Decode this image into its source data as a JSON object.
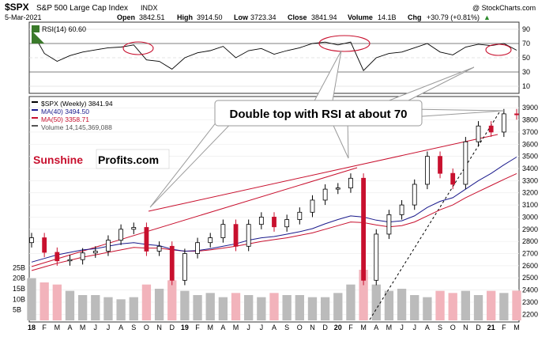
{
  "header": {
    "symbol": "$SPX",
    "name": "S&P 500 Large Cap Index",
    "exchange": "INDX",
    "date": "5-Mar-2021",
    "open_label": "Open",
    "open": "3842.51",
    "high_label": "High",
    "high": "3914.50",
    "low_label": "Low",
    "low": "3723.34",
    "close_label": "Close",
    "close": "3841.94",
    "volume_label": "Volume",
    "volume": "14.1B",
    "chg_label": "Chg",
    "chg": "+30.79 (+0.81%)",
    "chg_arrow": "▲",
    "watermark": "@ StockCharts.com"
  },
  "rsi_panel": {
    "label": "RSI(14) 60.60",
    "levels": [
      "90",
      "70",
      "50",
      "30",
      "10"
    ],
    "colors": {
      "line": "#000000",
      "overbought_fill": "#3a7a2a",
      "oversold_fill": "#b4162a",
      "highlight": "#c8102e"
    }
  },
  "price_panel": {
    "legend": [
      {
        "text": "$SPX (Weekly) 3841.94",
        "color": "#000000"
      },
      {
        "text": "MA(40) 3494.50",
        "color": "#1a1a8c"
      },
      {
        "text": "MA(50) 3358.71",
        "color": "#c8102e"
      },
      {
        "text": "Volume 14,145,369,088",
        "color": "#555555"
      }
    ],
    "price_ticks": [
      "3900",
      "3800",
      "3700",
      "3600",
      "3500",
      "3400",
      "3300",
      "3200",
      "3100",
      "3000",
      "2900",
      "2800",
      "2700",
      "2600",
      "2500",
      "2400",
      "2300",
      "2200"
    ],
    "volume_ticks": [
      "25B",
      "20B",
      "15B",
      "10B",
      "5B"
    ],
    "annotation": "Double top with RSI at about 70",
    "logo": {
      "part1": "Sunshine",
      "part2": "Profits.com"
    },
    "colors": {
      "up": "#000000",
      "down": "#c8102e",
      "ma40": "#1a1a8c",
      "ma50": "#c8102e",
      "trendline": "#c8102e",
      "volume": "#bbbbbb",
      "volume_up": "#f2b3bb"
    }
  },
  "x_axis": {
    "labels": [
      "18",
      "F",
      "M",
      "A",
      "M",
      "J",
      "J",
      "A",
      "S",
      "O",
      "N",
      "D",
      "19",
      "F",
      "M",
      "A",
      "M",
      "J",
      "J",
      "A",
      "S",
      "O",
      "N",
      "D",
      "20",
      "F",
      "M",
      "A",
      "M",
      "J",
      "J",
      "A",
      "S",
      "O",
      "N",
      "D",
      "21",
      "F",
      "M"
    ],
    "bold": [
      "18",
      "19",
      "20",
      "21"
    ]
  },
  "chart_data": {
    "type": "line",
    "title": "$SPX S&P 500 Large Cap Index INDX (Weekly)",
    "x": [
      "2018-01",
      "2018-02",
      "2018-03",
      "2018-04",
      "2018-05",
      "2018-06",
      "2018-07",
      "2018-08",
      "2018-09",
      "2018-10",
      "2018-11",
      "2018-12",
      "2019-01",
      "2019-02",
      "2019-03",
      "2019-04",
      "2019-05",
      "2019-06",
      "2019-07",
      "2019-08",
      "2019-09",
      "2019-10",
      "2019-11",
      "2019-12",
      "2020-01",
      "2020-02",
      "2020-03",
      "2020-04",
      "2020-05",
      "2020-06",
      "2020-07",
      "2020-08",
      "2020-09",
      "2020-10",
      "2020-11",
      "2020-12",
      "2021-01",
      "2021-02",
      "2021-03"
    ],
    "series": [
      {
        "name": "$SPX (Weekly)",
        "values": [
          2830,
          2710,
          2640,
          2650,
          2705,
          2720,
          2810,
          2900,
          2915,
          2720,
          2760,
          2480,
          2700,
          2790,
          2830,
          2940,
          2760,
          2940,
          3000,
          2920,
          2980,
          3040,
          3140,
          3230,
          3240,
          3320,
          2480,
          2860,
          3020,
          3100,
          3270,
          3500,
          3360,
          3270,
          3620,
          3750,
          3700,
          3850,
          3842
        ]
      },
      {
        "name": "MA(40)",
        "values": [
          2630,
          2660,
          2690,
          2710,
          2730,
          2740,
          2760,
          2780,
          2790,
          2775,
          2765,
          2735,
          2720,
          2725,
          2740,
          2760,
          2780,
          2810,
          2830,
          2840,
          2860,
          2880,
          2905,
          2945,
          2980,
          3010,
          3000,
          2975,
          2960,
          2970,
          3010,
          3080,
          3130,
          3160,
          3230,
          3300,
          3360,
          3430,
          3494.5
        ]
      },
      {
        "name": "MA(50)",
        "values": [
          2560,
          2590,
          2620,
          2645,
          2670,
          2690,
          2710,
          2730,
          2750,
          2745,
          2745,
          2730,
          2720,
          2720,
          2730,
          2745,
          2760,
          2780,
          2800,
          2815,
          2830,
          2850,
          2870,
          2900,
          2930,
          2960,
          2955,
          2935,
          2920,
          2930,
          2960,
          3010,
          3060,
          3100,
          3160,
          3210,
          3260,
          3310,
          3358.71
        ]
      }
    ],
    "rsi": [
      88,
      56,
      45,
      53,
      58,
      61,
      64,
      65,
      68,
      47,
      45,
      34,
      50,
      57,
      60,
      66,
      50,
      60,
      63,
      55,
      60,
      64,
      70,
      72,
      68,
      72,
      32,
      50,
      56,
      58,
      64,
      70,
      58,
      54,
      65,
      69,
      67,
      70,
      60.6
    ],
    "volume_billions": [
      20,
      18,
      17,
      14,
      12,
      12,
      11,
      10,
      11,
      17,
      15,
      19,
      14,
      12,
      13,
      11,
      13,
      12,
      11,
      13,
      12,
      12,
      11,
      11,
      13,
      17,
      24,
      17,
      14,
      15,
      12,
      11,
      14,
      13,
      14,
      12,
      14,
      13,
      14.1
    ],
    "ylim": [
      2150,
      3960
    ],
    "rsi_ylim": [
      0,
      100
    ],
    "volume_ylim": [
      0,
      30
    ],
    "log_scale": false,
    "grid": true,
    "legend_position": "top-left",
    "annotations": [
      "Double top with RSI at about 70"
    ]
  }
}
